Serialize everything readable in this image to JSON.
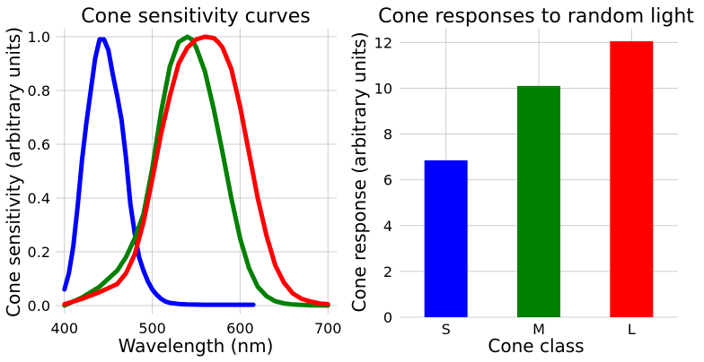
{
  "chart_data": [
    {
      "type": "line",
      "title": "Cone sensitivity curves",
      "xlabel": "Wavelength (nm)",
      "ylabel": "Cone sensitivity (arbitrary units)",
      "xlim": [
        390,
        710
      ],
      "ylim": [
        -0.03,
        1.03
      ],
      "xticks": [
        400,
        500,
        600,
        700
      ],
      "yticks": [
        0.0,
        0.2,
        0.4,
        0.6,
        0.8,
        1.0
      ],
      "xtick_labels": [
        "400",
        "500",
        "600",
        "700"
      ],
      "ytick_labels": [
        "0.0",
        "0.2",
        "0.4",
        "0.6",
        "0.8",
        "1.0"
      ],
      "grid": true,
      "series": [
        {
          "color": "#0000ff",
          "x": [
            400,
            405,
            410,
            415,
            420,
            425,
            430,
            435,
            440,
            445,
            450,
            455,
            460,
            465,
            470,
            475,
            480,
            485,
            490,
            495,
            500,
            505,
            510,
            515,
            520,
            530,
            540,
            560,
            580,
            600,
            615
          ],
          "y": [
            0.06,
            0.12,
            0.22,
            0.37,
            0.54,
            0.68,
            0.8,
            0.92,
            0.99,
            0.99,
            0.95,
            0.86,
            0.78,
            0.69,
            0.55,
            0.38,
            0.27,
            0.18,
            0.13,
            0.09,
            0.06,
            0.04,
            0.025,
            0.015,
            0.01,
            0.006,
            0.004,
            0.003,
            0.003,
            0.003,
            0.003
          ]
        },
        {
          "color": "#008000",
          "x": [
            400,
            420,
            440,
            460,
            470,
            480,
            490,
            500,
            510,
            520,
            530,
            540,
            545,
            550,
            560,
            570,
            580,
            590,
            600,
            610,
            620,
            630,
            640,
            650,
            660,
            680,
            700
          ],
          "y": [
            0.0,
            0.03,
            0.07,
            0.13,
            0.18,
            0.25,
            0.34,
            0.51,
            0.72,
            0.89,
            0.98,
            1.0,
            0.99,
            0.96,
            0.87,
            0.73,
            0.57,
            0.4,
            0.25,
            0.14,
            0.07,
            0.035,
            0.016,
            0.008,
            0.004,
            0.001,
            0.0
          ]
        },
        {
          "color": "#ff0000",
          "x": [
            400,
            420,
            440,
            460,
            470,
            480,
            490,
            500,
            510,
            520,
            530,
            540,
            550,
            560,
            570,
            575,
            580,
            590,
            600,
            610,
            620,
            630,
            640,
            650,
            660,
            670,
            680,
            690,
            700
          ],
          "y": [
            0.005,
            0.025,
            0.05,
            0.08,
            0.12,
            0.19,
            0.31,
            0.47,
            0.64,
            0.78,
            0.9,
            0.96,
            0.99,
            1.0,
            0.995,
            0.98,
            0.96,
            0.88,
            0.74,
            0.57,
            0.4,
            0.26,
            0.15,
            0.085,
            0.045,
            0.025,
            0.015,
            0.008,
            0.005
          ]
        }
      ]
    },
    {
      "type": "bar",
      "title": "Cone responses to random light",
      "xlabel": "Cone class",
      "ylabel": "Cone response (arbitrary units)",
      "categories": [
        "S",
        "M",
        "L"
      ],
      "values": [
        6.85,
        10.1,
        12.05
      ],
      "colors": [
        "#0000ff",
        "#008000",
        "#ff0000"
      ],
      "ylim": [
        0,
        12.6
      ],
      "yticks": [
        0,
        2,
        4,
        6,
        8,
        10,
        12
      ],
      "ytick_labels": [
        "0",
        "2",
        "4",
        "6",
        "8",
        "10",
        "12"
      ],
      "grid": true
    }
  ]
}
